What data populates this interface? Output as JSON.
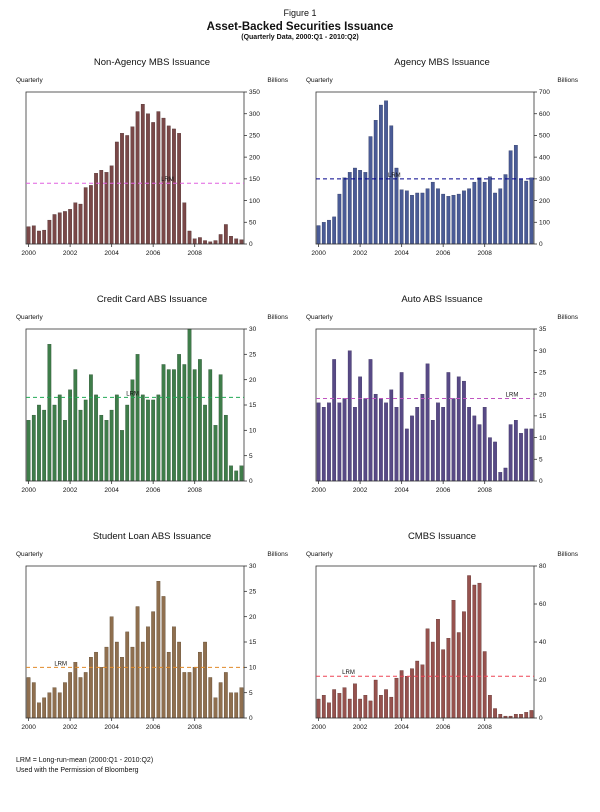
{
  "figure": {
    "label": "Figure 1",
    "title": "Asset-Backed Securities Issuance",
    "subtitle": "(Quarterly Data, 2000:Q1 - 2010:Q2)"
  },
  "labels": {
    "quarterly": "Quarterly",
    "billions": "Billions",
    "lrm": "LRM"
  },
  "footer": {
    "line1": "LRM = Long-run-mean (2000:Q1 - 2010:Q2)",
    "line2": "Used with the Permission of Bloomberg"
  },
  "chart_data": [
    {
      "type": "bar",
      "title": "Non-Agency MBS Issuance",
      "xlabel": "Quarterly",
      "ylabel": "Billions",
      "x_range": "2000:Q1 - 2010:Q2",
      "xticks": [
        2000,
        2002,
        2004,
        2006,
        2008
      ],
      "ylim": [
        0,
        350
      ],
      "ytick_step": 50,
      "lrm": 140,
      "lrm_label_x": 0.62,
      "bar_color": "#7a4848",
      "bar_stroke": "#3a1d1d",
      "lrm_color": "#e060e0",
      "values": [
        40,
        42,
        30,
        32,
        55,
        68,
        72,
        75,
        80,
        95,
        92,
        130,
        135,
        163,
        170,
        165,
        180,
        235,
        255,
        250,
        270,
        305,
        322,
        300,
        280,
        305,
        290,
        272,
        265,
        255,
        95,
        30,
        12,
        15,
        8,
        5,
        8,
        22,
        45,
        18,
        12,
        10
      ]
    },
    {
      "type": "bar",
      "title": "Agency MBS Issuance",
      "xlabel": "Quarterly",
      "ylabel": "Billions",
      "x_range": "2000:Q1 - 2010:Q2",
      "xticks": [
        2000,
        2002,
        2004,
        2006,
        2008
      ],
      "ylim": [
        0,
        700
      ],
      "ytick_step": 100,
      "lrm": 300,
      "lrm_label_x": 0.33,
      "bar_color": "#4a5b96",
      "bar_stroke": "#1e2a52",
      "lrm_color": "#00008b",
      "values": [
        85,
        100,
        110,
        125,
        230,
        305,
        330,
        350,
        340,
        330,
        495,
        570,
        640,
        660,
        545,
        350,
        250,
        245,
        225,
        235,
        235,
        255,
        285,
        255,
        230,
        220,
        225,
        230,
        245,
        255,
        285,
        305,
        285,
        310,
        235,
        255,
        320,
        430,
        455,
        300,
        290,
        305
      ]
    },
    {
      "type": "bar",
      "title": "Credit Card ABS Issuance",
      "xlabel": "Quarterly",
      "ylabel": "Billions",
      "x_range": "2000:Q1 - 2010:Q2",
      "xticks": [
        2000,
        2002,
        2004,
        2006,
        2008
      ],
      "ylim": [
        0,
        30
      ],
      "ytick_step": 5,
      "lrm": 16.5,
      "lrm_label_x": 0.46,
      "bar_color": "#3f7d4a",
      "bar_stroke": "#1c4023",
      "lrm_color": "#22aa55",
      "values": [
        12,
        13,
        15,
        14,
        27,
        15,
        17,
        12,
        18,
        22,
        14,
        16,
        21,
        17,
        13,
        12,
        14,
        17,
        10,
        15,
        20,
        25,
        17,
        16,
        16,
        17,
        23,
        22,
        22,
        25,
        23,
        30,
        22,
        24,
        15,
        22,
        11,
        21,
        13,
        3,
        2,
        3
      ]
    },
    {
      "type": "bar",
      "title": "Auto ABS Issuance",
      "xlabel": "Quarterly",
      "ylabel": "Billions",
      "x_range": "2000:Q1 - 2010:Q2",
      "xticks": [
        2000,
        2002,
        2004,
        2006,
        2008
      ],
      "ylim": [
        0,
        35
      ],
      "ytick_step": 5,
      "lrm": 19,
      "lrm_label_x": 0.87,
      "bar_color": "#584a86",
      "bar_stroke": "#2a2050",
      "lrm_color": "#c055c0",
      "values": [
        18,
        17,
        18,
        28,
        18,
        19,
        30,
        17,
        24,
        19,
        28,
        20,
        19,
        18,
        21,
        17,
        25,
        12,
        15,
        17,
        20,
        27,
        14,
        18,
        17,
        25,
        19,
        24,
        23,
        17,
        15,
        13,
        17,
        10,
        9,
        2,
        3,
        13,
        14,
        11,
        12,
        12
      ]
    },
    {
      "type": "bar",
      "title": "Student Loan ABS Issuance",
      "xlabel": "Quarterly",
      "ylabel": "Billions",
      "x_range": "2000:Q1 - 2010:Q2",
      "xticks": [
        2000,
        2002,
        2004,
        2006,
        2008
      ],
      "ylim": [
        0,
        30
      ],
      "ytick_step": 5,
      "lrm": 10,
      "lrm_label_x": 0.13,
      "bar_color": "#8f6f4f",
      "bar_stroke": "#4a3418",
      "lrm_color": "#e08a2a",
      "values": [
        8,
        7,
        3,
        4,
        5,
        6,
        5,
        7,
        9,
        11,
        8,
        9,
        12,
        13,
        10,
        14,
        20,
        15,
        12,
        17,
        14,
        22,
        15,
        18,
        21,
        27,
        24,
        13,
        18,
        15,
        9,
        9,
        10,
        13,
        15,
        8,
        4,
        7,
        9,
        5,
        5,
        6
      ]
    },
    {
      "type": "bar",
      "title": "CMBS Issuance",
      "xlabel": "Quarterly",
      "ylabel": "Billions",
      "x_range": "2000:Q1 - 2010:Q2",
      "xticks": [
        2000,
        2002,
        2004,
        2006,
        2008
      ],
      "ylim": [
        0,
        80
      ],
      "ytick_step": 20,
      "lrm": 22,
      "lrm_label_x": 0.12,
      "bar_color": "#96524e",
      "bar_stroke": "#4a1f1c",
      "lrm_color": "#ee4455",
      "values": [
        10,
        12,
        8,
        15,
        13,
        16,
        10,
        18,
        10,
        12,
        9,
        20,
        12,
        15,
        11,
        21,
        25,
        22,
        26,
        30,
        28,
        47,
        40,
        52,
        36,
        42,
        62,
        45,
        56,
        75,
        70,
        71,
        35,
        12,
        5,
        2,
        1,
        1,
        2,
        2,
        3,
        4
      ]
    }
  ]
}
